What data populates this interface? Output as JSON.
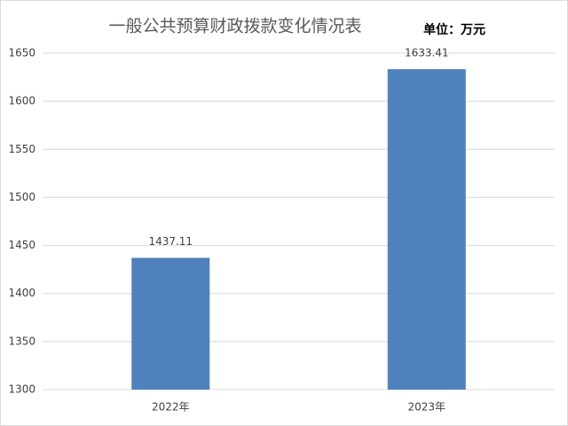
{
  "chart_data": {
    "type": "bar",
    "title": "一般公共预算财政拨款变化情况表",
    "annotation": "单位：万元",
    "categories": [
      "2022年",
      "2023年"
    ],
    "values": [
      1437.11,
      1633.41
    ],
    "color": "#4f81bd",
    "ylim": [
      1300,
      1650
    ],
    "yticks": [
      1300,
      1350,
      1400,
      1450,
      1500,
      1550,
      1600,
      1650
    ],
    "grid": true
  }
}
